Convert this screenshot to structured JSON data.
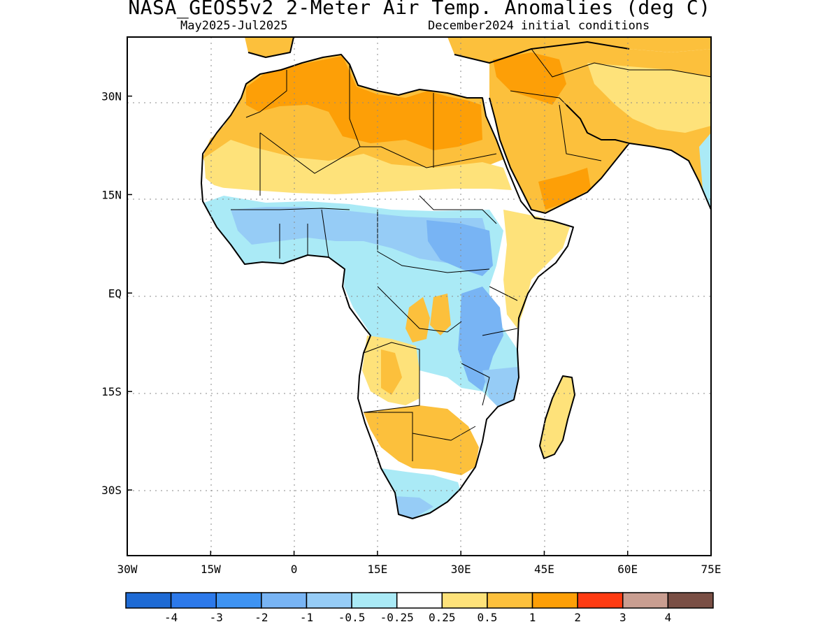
{
  "title": "NASA_GEOS5v2 2-Meter Air Temp. Anomalies (deg C)",
  "subtitle_left": "May2025-Jul2025",
  "subtitle_right": "December2024 initial conditions",
  "map": {
    "lon_range": [
      -30,
      75
    ],
    "lat_range": [
      -40,
      39
    ],
    "lon_ticks": [
      {
        "value": -30,
        "label": "30W"
      },
      {
        "value": -15,
        "label": "15W"
      },
      {
        "value": 0,
        "label": "0"
      },
      {
        "value": 15,
        "label": "15E"
      },
      {
        "value": 30,
        "label": "30E"
      },
      {
        "value": 45,
        "label": "45E"
      },
      {
        "value": 60,
        "label": "60E"
      },
      {
        "value": 75,
        "label": "75E"
      }
    ],
    "lat_ticks": [
      {
        "value": 30,
        "label": "30N"
      },
      {
        "value": 15,
        "label": "15N"
      },
      {
        "value": 0,
        "label": "EQ"
      },
      {
        "value": -15,
        "label": "15S"
      },
      {
        "value": -30,
        "label": "30S"
      }
    ],
    "grid": "dotted"
  },
  "colorbar": {
    "colors": [
      "#1e6ad4",
      "#2c79ea",
      "#3e93f2",
      "#78b4f4",
      "#96ccf6",
      "#aaeaf6",
      "#ffffff",
      "#fee27a",
      "#fcc03c",
      "#fd9f07",
      "#ff3b12",
      "#c99e91",
      "#7a4f45"
    ],
    "labels": [
      "-4",
      "-3",
      "-2",
      "-1",
      "-0.5",
      "-0.25",
      "0.25",
      "0.5",
      "1",
      "2",
      "3",
      "4"
    ]
  }
}
